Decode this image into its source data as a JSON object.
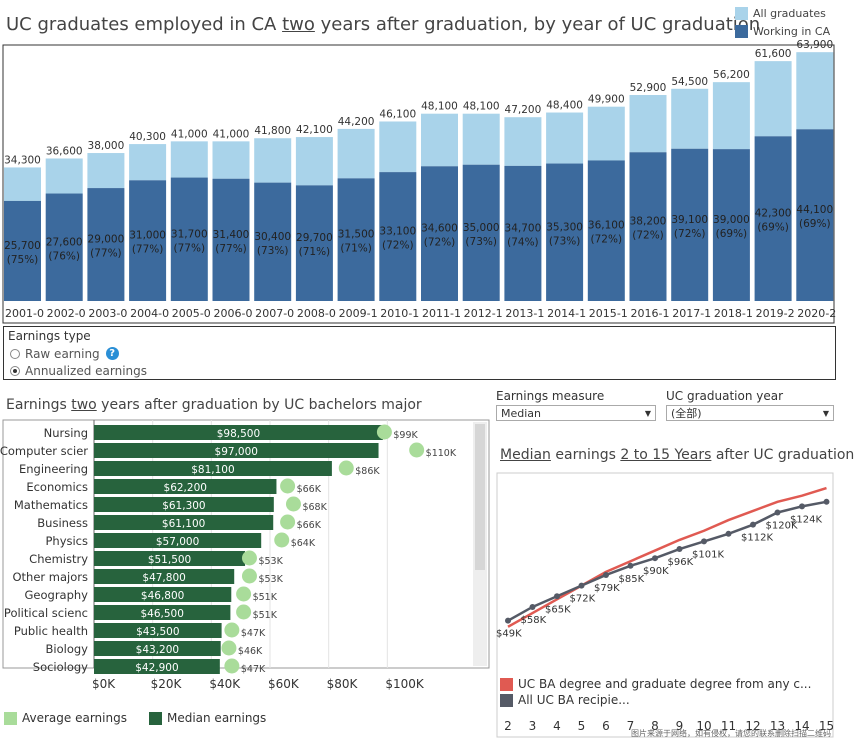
{
  "top_chart": {
    "title_pre": "UC graduates employed in CA ",
    "title_em": "two",
    "title_post": " years after graduation, by year of UC graduation",
    "legend": [
      "All graduates",
      "Working in CA"
    ]
  },
  "earnings_type": {
    "label": "Earnings type",
    "options": [
      "Raw earning",
      "Annualized earnings"
    ],
    "selected": "Annualized earnings",
    "help": "?"
  },
  "major_chart": {
    "title_pre": "Earnings ",
    "title_em": "two",
    "title_post": " years after graduation by UC bachelors major",
    "legend": [
      "Average earnings",
      "Median earnings"
    ]
  },
  "controls": {
    "measure_label": "Earnings measure",
    "measure_value": "Median",
    "year_label": "UC graduation year",
    "year_value": "(全部)"
  },
  "line_chart": {
    "title_em1": "Median",
    "title_mid": " earnings ",
    "title_em2": "2 to 15 Years",
    "title_post": " after UC graduation",
    "legend": [
      "UC BA degree and graduate degree from any c...",
      "All UC BA recipie..."
    ]
  },
  "watermark": "图片来源于网络，如有侵权，请您的联系删除扫描二维码",
  "colors": {
    "light": "#a9d3ea",
    "dark": "#3c6a9d",
    "green": "#27633d",
    "avg": "#a9dc9a",
    "red": "#e05a52",
    "gray": "#555a66"
  },
  "chart_data": [
    {
      "type": "bar",
      "categories": [
        "2001-0",
        "2002-0",
        "2003-0",
        "2004-0",
        "2005-0",
        "2006-0",
        "2007-0",
        "2008-0",
        "2009-1",
        "2010-1",
        "2011-1",
        "2012-1",
        "2013-1",
        "2014-1",
        "2015-1",
        "2016-1",
        "2017-1",
        "2018-1",
        "2019-2",
        "2020-2"
      ],
      "series": [
        {
          "name": "All graduates",
          "values": [
            34300,
            36600,
            38000,
            40300,
            41000,
            41000,
            41800,
            42100,
            44200,
            46100,
            48100,
            48100,
            47200,
            48400,
            49900,
            52900,
            54500,
            56200,
            61600,
            63900
          ],
          "labels": [
            "34,300",
            "36,600",
            "38,000",
            "40,300",
            "41,000",
            "41,000",
            "41,800",
            "42,100",
            "44,200",
            "46,100",
            "48,100",
            "48,100",
            "47,200",
            "48,400",
            "49,900",
            "52,900",
            "54,500",
            "56,200",
            "61,600",
            "63,900"
          ]
        },
        {
          "name": "Working in CA",
          "values": [
            25700,
            27600,
            29000,
            31000,
            31700,
            31400,
            30400,
            29700,
            31500,
            33100,
            34600,
            35000,
            34700,
            35300,
            36100,
            38200,
            39100,
            39000,
            42300,
            44100
          ],
          "labels": [
            "25,700",
            "27,600",
            "29,000",
            "31,000",
            "31,700",
            "31,400",
            "30,400",
            "29,700",
            "31,500",
            "33,100",
            "34,600",
            "35,000",
            "34,700",
            "35,300",
            "36,100",
            "38,200",
            "39,100",
            "39,000",
            "42,300",
            "44,100"
          ],
          "pct": [
            "(75%)",
            "(76%)",
            "(77%)",
            "(77%)",
            "(77%)",
            "(77%)",
            "(73%)",
            "(71%)",
            "(71%)",
            "(72%)",
            "(72%)",
            "(73%)",
            "(74%)",
            "(73%)",
            "(72%)",
            "(72%)",
            "(72%)",
            "(69%)",
            "(69%)",
            "(69%)"
          ]
        }
      ],
      "ylim": [
        0,
        66000
      ]
    },
    {
      "type": "bar",
      "orientation": "horizontal",
      "categories": [
        "Nursing",
        "Computer scier",
        "Engineering",
        "Economics",
        "Mathematics",
        "Business",
        "Physics",
        "Chemistry",
        "Other majors",
        "Geography",
        "Political scienc",
        "Public health",
        "Biology",
        "Sociology"
      ],
      "series": [
        {
          "name": "Median earnings",
          "values": [
            98500,
            97000,
            81100,
            62200,
            61300,
            61100,
            57000,
            51500,
            47800,
            46800,
            46500,
            43500,
            43200,
            42900
          ],
          "labels": [
            "$98,500",
            "$97,000",
            "$81,100",
            "$62,200",
            "$61,300",
            "$61,100",
            "$57,000",
            "$51,500",
            "$47,800",
            "$46,800",
            "$46,500",
            "$43,500",
            "$43,200",
            "$42,900"
          ]
        },
        {
          "name": "Average earnings",
          "values": [
            99000,
            110000,
            86000,
            66000,
            68000,
            66000,
            64000,
            53000,
            53000,
            51000,
            51000,
            47000,
            46000,
            47000
          ],
          "labels": [
            "$99K",
            "$110K",
            "$86K",
            "$66K",
            "$68K",
            "$66K",
            "$64K",
            "$53K",
            "$53K",
            "$51K",
            "$51K",
            "$47K",
            "$46K",
            "$47K"
          ]
        }
      ],
      "xticks": [
        "$0K",
        "$20K",
        "$40K",
        "$60K",
        "$80K",
        "$100K"
      ],
      "xlim": [
        0,
        120000
      ]
    },
    {
      "type": "line",
      "x": [
        2,
        3,
        4,
        5,
        6,
        7,
        8,
        9,
        10,
        11,
        12,
        13,
        14,
        15
      ],
      "series": [
        {
          "name": "UC BA degree and graduate degree from any c...",
          "values": [
            45000,
            54000,
            63000,
            72000,
            81000,
            88000,
            95000,
            102000,
            108000,
            115000,
            121000,
            127000,
            131000,
            136000
          ]
        },
        {
          "name": "All UC BA recipie...",
          "values": [
            49000,
            58000,
            65000,
            72000,
            79000,
            85000,
            90000,
            96000,
            101000,
            106000,
            112000,
            120000,
            124000,
            127000
          ],
          "labels": [
            "$49K",
            "$58K",
            "$65K",
            "$72K",
            "$79K",
            "$85K",
            "$90K",
            "$96K",
            "$101K",
            "",
            "$112K",
            "$120K",
            "$124K",
            ""
          ]
        }
      ],
      "xticks": [
        "2",
        "3",
        "4",
        "5",
        "6",
        "7",
        "8",
        "9",
        "10",
        "11",
        "12",
        "13",
        "14",
        "15"
      ],
      "ylim": [
        35000,
        140000
      ]
    }
  ]
}
